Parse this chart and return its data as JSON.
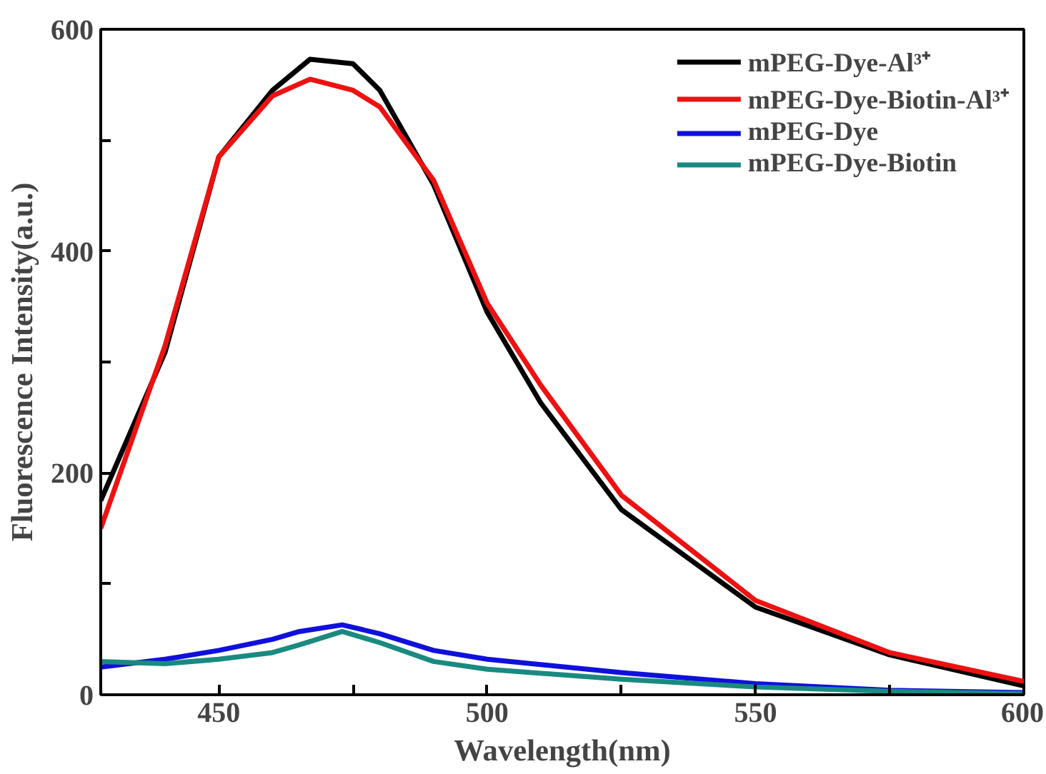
{
  "chart_data": {
    "type": "line",
    "xlabel": "Wavelength(nm)",
    "ylabel": "Fluorescence Intensity(a.u.)",
    "x": [
      428,
      440,
      450,
      460,
      467,
      475,
      480,
      490,
      500,
      510,
      525,
      550,
      575,
      600
    ],
    "series": [
      {
        "name": "mPEG-Dye-Al³⁺",
        "color": "#000000",
        "values": [
          175,
          309,
          485,
          545,
          573,
          569,
          545,
          460,
          345,
          263,
          167,
          79,
          36,
          8
        ]
      },
      {
        "name": "mPEG-Dye-Biotin-Al³⁺",
        "color": "#ee1111",
        "values": [
          150,
          315,
          485,
          540,
          555,
          545,
          530,
          464,
          353,
          279,
          180,
          85,
          38,
          12
        ]
      },
      {
        "name": "mPEG-Dye",
        "color": "#1010dd",
        "x": [
          428,
          440,
          450,
          460,
          465,
          473,
          480,
          490,
          500,
          525,
          550,
          575,
          600
        ],
        "values": [
          25,
          32,
          40,
          50,
          57,
          63,
          55,
          40,
          32,
          20,
          10,
          4,
          2
        ]
      },
      {
        "name": "mPEG-Dye-Biotin",
        "color": "#1a8a80",
        "x": [
          428,
          440,
          450,
          460,
          465,
          473,
          480,
          490,
          500,
          525,
          550,
          575,
          600
        ],
        "values": [
          30,
          28,
          32,
          38,
          45,
          57,
          47,
          30,
          23,
          14,
          7,
          3,
          1
        ]
      }
    ],
    "xlim": [
      428,
      600
    ],
    "ylim": [
      0,
      600
    ],
    "xticks": [
      450,
      {
        "value": 475,
        "label": null
      },
      500,
      {
        "value": 525,
        "label": null
      },
      550,
      {
        "value": 575,
        "label": null
      },
      600
    ],
    "yticks": [
      0,
      {
        "value": 100,
        "label": null
      },
      200,
      {
        "value": 300,
        "label": null
      },
      400,
      {
        "value": 500,
        "label": null
      },
      600
    ],
    "grid": false,
    "legend": "top right",
    "line_style": "solid",
    "marker": "none"
  }
}
